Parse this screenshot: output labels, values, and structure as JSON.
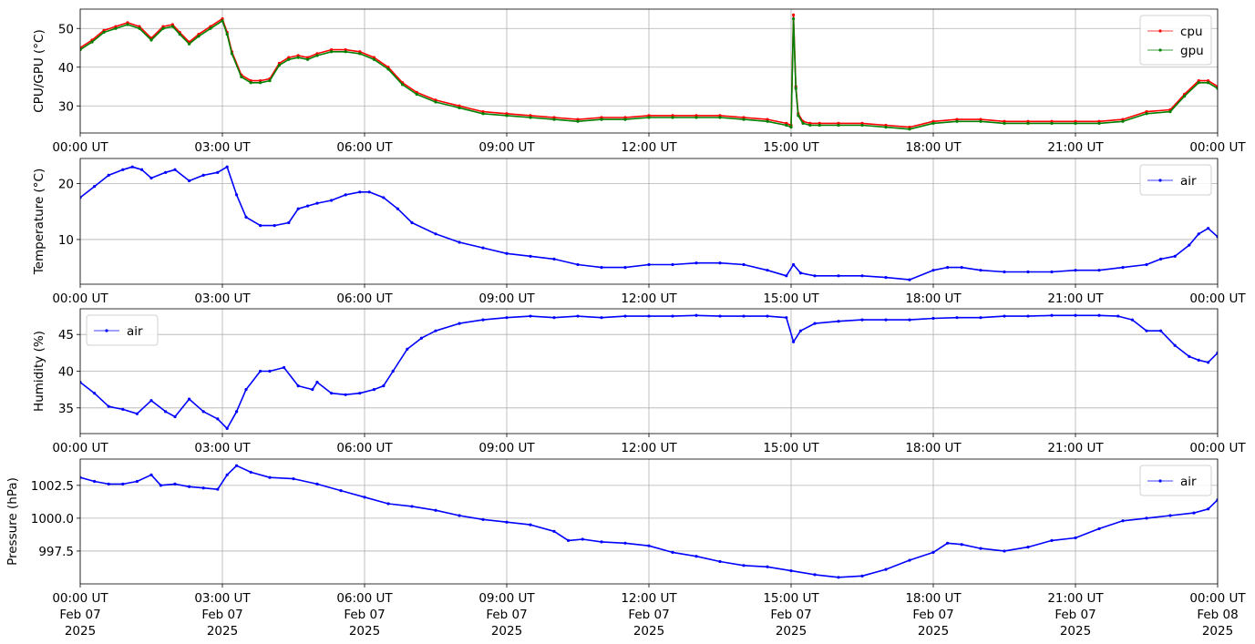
{
  "chart_data": [
    {
      "type": "line",
      "ylabel": "CPU/GPU (°C)",
      "ylim": [
        23,
        55
      ],
      "yticks": [
        30,
        40,
        50
      ],
      "yticklabels": [
        "30",
        "40",
        "50"
      ],
      "xlim": [
        0,
        24
      ],
      "xticks": [
        0,
        3,
        6,
        9,
        12,
        15,
        18,
        21,
        24
      ],
      "xticklabels": [
        "00:00 UT",
        "03:00 UT",
        "06:00 UT",
        "09:00 UT",
        "12:00 UT",
        "15:00 UT",
        "18:00 UT",
        "21:00 UT",
        "00:00 UT"
      ],
      "grid": true,
      "legend": "upper-right",
      "series": [
        {
          "name": "cpu",
          "color": "#ff0000",
          "x": [
            0,
            0.25,
            0.5,
            0.75,
            1.0,
            1.25,
            1.5,
            1.75,
            1.95,
            2.1,
            2.3,
            2.5,
            2.75,
            3.0,
            3.1,
            3.2,
            3.4,
            3.6,
            3.8,
            4.0,
            4.2,
            4.4,
            4.6,
            4.8,
            5.0,
            5.3,
            5.6,
            5.9,
            6.2,
            6.5,
            6.8,
            7.1,
            7.5,
            8.0,
            8.5,
            9.0,
            9.5,
            10.0,
            10.5,
            11.0,
            11.5,
            12.0,
            12.5,
            13.0,
            13.5,
            14.0,
            14.5,
            14.9,
            15.0,
            15.05,
            15.1,
            15.15,
            15.25,
            15.4,
            15.6,
            16.0,
            16.5,
            17.0,
            17.5,
            18.0,
            18.5,
            19.0,
            19.5,
            20.0,
            20.5,
            21.0,
            21.5,
            22.0,
            22.5,
            23.0,
            23.3,
            23.6,
            23.8,
            24.0
          ],
          "y": [
            45,
            47,
            49.5,
            50.5,
            51.5,
            50.5,
            47.5,
            50.5,
            51,
            49,
            46.5,
            48.5,
            50.5,
            52.5,
            49,
            44,
            38,
            36.5,
            36.5,
            37,
            41,
            42.5,
            43,
            42.5,
            43.5,
            44.5,
            44.5,
            44,
            42.5,
            40,
            36,
            33.5,
            31.5,
            30,
            28.5,
            28,
            27.5,
            27,
            26.5,
            27,
            27,
            27.5,
            27.5,
            27.5,
            27.5,
            27,
            26.5,
            25.5,
            25,
            53.5,
            35,
            28,
            26,
            25.5,
            25.5,
            25.5,
            25.5,
            25,
            24.5,
            26,
            26.5,
            26.5,
            26,
            26,
            26,
            26,
            26,
            26.5,
            28.5,
            29,
            33,
            36.5,
            36.5,
            35
          ]
        },
        {
          "name": "gpu",
          "color": "#008000",
          "x": [
            0,
            0.25,
            0.5,
            0.75,
            1.0,
            1.25,
            1.5,
            1.75,
            1.95,
            2.1,
            2.3,
            2.5,
            2.75,
            3.0,
            3.1,
            3.2,
            3.4,
            3.6,
            3.8,
            4.0,
            4.2,
            4.4,
            4.6,
            4.8,
            5.0,
            5.3,
            5.6,
            5.9,
            6.2,
            6.5,
            6.8,
            7.1,
            7.5,
            8.0,
            8.5,
            9.0,
            9.5,
            10.0,
            10.5,
            11.0,
            11.5,
            12.0,
            12.5,
            13.0,
            13.5,
            14.0,
            14.5,
            14.9,
            15.0,
            15.05,
            15.1,
            15.15,
            15.25,
            15.4,
            15.6,
            16.0,
            16.5,
            17.0,
            17.5,
            18.0,
            18.5,
            19.0,
            19.5,
            20.0,
            20.5,
            21.0,
            21.5,
            22.0,
            22.5,
            23.0,
            23.3,
            23.6,
            23.8,
            24.0
          ],
          "y": [
            44.5,
            46.5,
            49,
            50,
            51,
            50,
            47,
            50,
            50.5,
            48.5,
            46,
            48,
            50,
            52,
            48.5,
            43.5,
            37.5,
            36,
            36,
            36.5,
            40.5,
            42,
            42.5,
            42,
            43,
            44,
            44,
            43.5,
            42,
            39.5,
            35.5,
            33,
            31,
            29.5,
            28,
            27.5,
            27,
            26.5,
            26,
            26.5,
            26.5,
            27,
            27,
            27,
            27,
            26.5,
            26,
            25,
            24.5,
            52.5,
            34.5,
            27.5,
            25.5,
            25,
            25,
            25,
            25,
            24.5,
            24,
            25.5,
            26,
            26,
            25.5,
            25.5,
            25.5,
            25.5,
            25.5,
            26,
            28,
            28.5,
            32.5,
            36,
            36,
            34.5
          ]
        }
      ]
    },
    {
      "type": "line",
      "ylabel": "Temperature (°C)",
      "ylim": [
        2,
        24.5
      ],
      "yticks": [
        10,
        20
      ],
      "yticklabels": [
        "10",
        "20"
      ],
      "xlim": [
        0,
        24
      ],
      "xticks": [
        0,
        3,
        6,
        9,
        12,
        15,
        18,
        21,
        24
      ],
      "xticklabels": [
        "00:00 UT",
        "03:00 UT",
        "06:00 UT",
        "09:00 UT",
        "12:00 UT",
        "15:00 UT",
        "18:00 UT",
        "21:00 UT",
        "00:00 UT"
      ],
      "grid": true,
      "legend": "upper-right",
      "series": [
        {
          "name": "air",
          "color": "#0000ff",
          "x": [
            0,
            0.3,
            0.6,
            0.9,
            1.1,
            1.3,
            1.5,
            1.8,
            2.0,
            2.3,
            2.6,
            2.9,
            3.1,
            3.3,
            3.5,
            3.8,
            4.1,
            4.4,
            4.6,
            4.8,
            5.0,
            5.3,
            5.6,
            5.9,
            6.1,
            6.4,
            6.7,
            7.0,
            7.5,
            8.0,
            8.5,
            9.0,
            9.5,
            10.0,
            10.5,
            11.0,
            11.5,
            12.0,
            12.5,
            13.0,
            13.5,
            14.0,
            14.5,
            14.9,
            15.05,
            15.2,
            15.5,
            16.0,
            16.5,
            17.0,
            17.5,
            18.0,
            18.3,
            18.6,
            19.0,
            19.5,
            20.0,
            20.5,
            21.0,
            21.5,
            22.0,
            22.5,
            22.8,
            23.1,
            23.4,
            23.6,
            23.8,
            24.0
          ],
          "y": [
            17.5,
            19.5,
            21.5,
            22.5,
            23,
            22.5,
            21,
            22,
            22.5,
            20.5,
            21.5,
            22,
            23,
            18,
            14,
            12.5,
            12.5,
            13,
            15.5,
            16,
            16.5,
            17,
            18,
            18.5,
            18.5,
            17.5,
            15.5,
            13,
            11,
            9.5,
            8.5,
            7.5,
            7,
            6.5,
            5.5,
            5,
            5,
            5.5,
            5.5,
            5.8,
            5.8,
            5.5,
            4.5,
            3.5,
            5.5,
            4,
            3.5,
            3.5,
            3.5,
            3.2,
            2.8,
            4.5,
            5,
            5,
            4.5,
            4.2,
            4.2,
            4.2,
            4.5,
            4.5,
            5,
            5.5,
            6.5,
            7,
            9,
            11,
            12,
            10.5
          ]
        }
      ]
    },
    {
      "type": "line",
      "ylabel": "Humidity (%)",
      "ylim": [
        31.5,
        48.5
      ],
      "yticks": [
        35,
        40,
        45
      ],
      "yticklabels": [
        "35",
        "40",
        "45"
      ],
      "xlim": [
        0,
        24
      ],
      "xticks": [
        0,
        3,
        6,
        9,
        12,
        15,
        18,
        21,
        24
      ],
      "xticklabels": [
        "00:00 UT",
        "03:00 UT",
        "06:00 UT",
        "09:00 UT",
        "12:00 UT",
        "15:00 UT",
        "18:00 UT",
        "21:00 UT",
        "00:00 UT"
      ],
      "grid": true,
      "legend": "upper-left",
      "series": [
        {
          "name": "air",
          "color": "#0000ff",
          "x": [
            0,
            0.3,
            0.6,
            0.9,
            1.2,
            1.5,
            1.8,
            2.0,
            2.3,
            2.6,
            2.9,
            3.1,
            3.3,
            3.5,
            3.8,
            4.0,
            4.3,
            4.6,
            4.9,
            5.0,
            5.3,
            5.6,
            5.9,
            6.2,
            6.4,
            6.6,
            6.9,
            7.2,
            7.5,
            8.0,
            8.5,
            9.0,
            9.5,
            10.0,
            10.5,
            11.0,
            11.5,
            12.0,
            12.5,
            13.0,
            13.5,
            14.0,
            14.5,
            14.9,
            15.05,
            15.2,
            15.5,
            16.0,
            16.5,
            17.0,
            17.5,
            18.0,
            18.5,
            19.0,
            19.5,
            20.0,
            20.5,
            21.0,
            21.5,
            21.9,
            22.2,
            22.5,
            22.8,
            23.1,
            23.4,
            23.6,
            23.8,
            24.0
          ],
          "y": [
            38.5,
            37,
            35.2,
            34.8,
            34.2,
            36,
            34.5,
            33.8,
            36.2,
            34.5,
            33.5,
            32.2,
            34.5,
            37.5,
            40,
            40,
            40.5,
            38,
            37.5,
            38.5,
            37,
            36.8,
            37,
            37.5,
            38,
            40,
            43,
            44.5,
            45.5,
            46.5,
            47,
            47.3,
            47.5,
            47.3,
            47.5,
            47.3,
            47.5,
            47.5,
            47.5,
            47.6,
            47.5,
            47.5,
            47.5,
            47.3,
            44,
            45.5,
            46.5,
            46.8,
            47,
            47,
            47,
            47.2,
            47.3,
            47.3,
            47.5,
            47.5,
            47.6,
            47.6,
            47.6,
            47.5,
            47,
            45.5,
            45.5,
            43.5,
            42,
            41.5,
            41.2,
            42.5
          ]
        }
      ]
    },
    {
      "type": "line",
      "ylabel": "Pressure (hPa)",
      "ylim": [
        995,
        1004.5
      ],
      "yticks": [
        997.5,
        1000.0,
        1002.5
      ],
      "yticklabels": [
        "997.5",
        "1000.0",
        "1002.5"
      ],
      "xlim": [
        0,
        24
      ],
      "xticks": [
        0,
        3,
        6,
        9,
        12,
        15,
        18,
        21,
        24
      ],
      "xticklabels": [
        "00:00 UT",
        "03:00 UT",
        "06:00 UT",
        "09:00 UT",
        "12:00 UT",
        "15:00 UT",
        "18:00 UT",
        "21:00 UT",
        "00:00 UT"
      ],
      "xticklabels_date": [
        "Feb 07",
        "Feb 07",
        "Feb 07",
        "Feb 07",
        "Feb 07",
        "Feb 07",
        "Feb 07",
        "Feb 07",
        "Feb 08"
      ],
      "xticklabels_year": [
        "2025",
        "2025",
        "2025",
        "2025",
        "2025",
        "2025",
        "2025",
        "2025",
        "2025"
      ],
      "grid": true,
      "legend": "upper-right",
      "series": [
        {
          "name": "air",
          "color": "#0000ff",
          "x": [
            0,
            0.3,
            0.6,
            0.9,
            1.2,
            1.5,
            1.7,
            2.0,
            2.3,
            2.6,
            2.9,
            3.1,
            3.3,
            3.6,
            4.0,
            4.5,
            5.0,
            5.5,
            6.0,
            6.5,
            7.0,
            7.5,
            8.0,
            8.5,
            9.0,
            9.5,
            10.0,
            10.3,
            10.6,
            11.0,
            11.5,
            12.0,
            12.5,
            13.0,
            13.5,
            14.0,
            14.5,
            15.0,
            15.5,
            16.0,
            16.5,
            17.0,
            17.5,
            18.0,
            18.3,
            18.6,
            19.0,
            19.5,
            20.0,
            20.5,
            21.0,
            21.5,
            22.0,
            22.5,
            23.0,
            23.5,
            23.8,
            24.0
          ],
          "y": [
            1003.1,
            1002.8,
            1002.6,
            1002.6,
            1002.8,
            1003.3,
            1002.5,
            1002.6,
            1002.4,
            1002.3,
            1002.2,
            1003.3,
            1004.0,
            1003.5,
            1003.1,
            1003.0,
            1002.6,
            1002.1,
            1001.6,
            1001.1,
            1000.9,
            1000.6,
            1000.2,
            999.9,
            999.7,
            999.5,
            999.0,
            998.3,
            998.4,
            998.2,
            998.1,
            997.9,
            997.4,
            997.1,
            996.7,
            996.4,
            996.3,
            996.0,
            995.7,
            995.5,
            995.6,
            996.1,
            996.8,
            997.4,
            998.1,
            998.0,
            997.7,
            997.5,
            997.8,
            998.3,
            998.5,
            999.2,
            999.8,
            1000.0,
            1000.2,
            1000.4,
            1000.7,
            1001.4
          ]
        }
      ]
    }
  ]
}
